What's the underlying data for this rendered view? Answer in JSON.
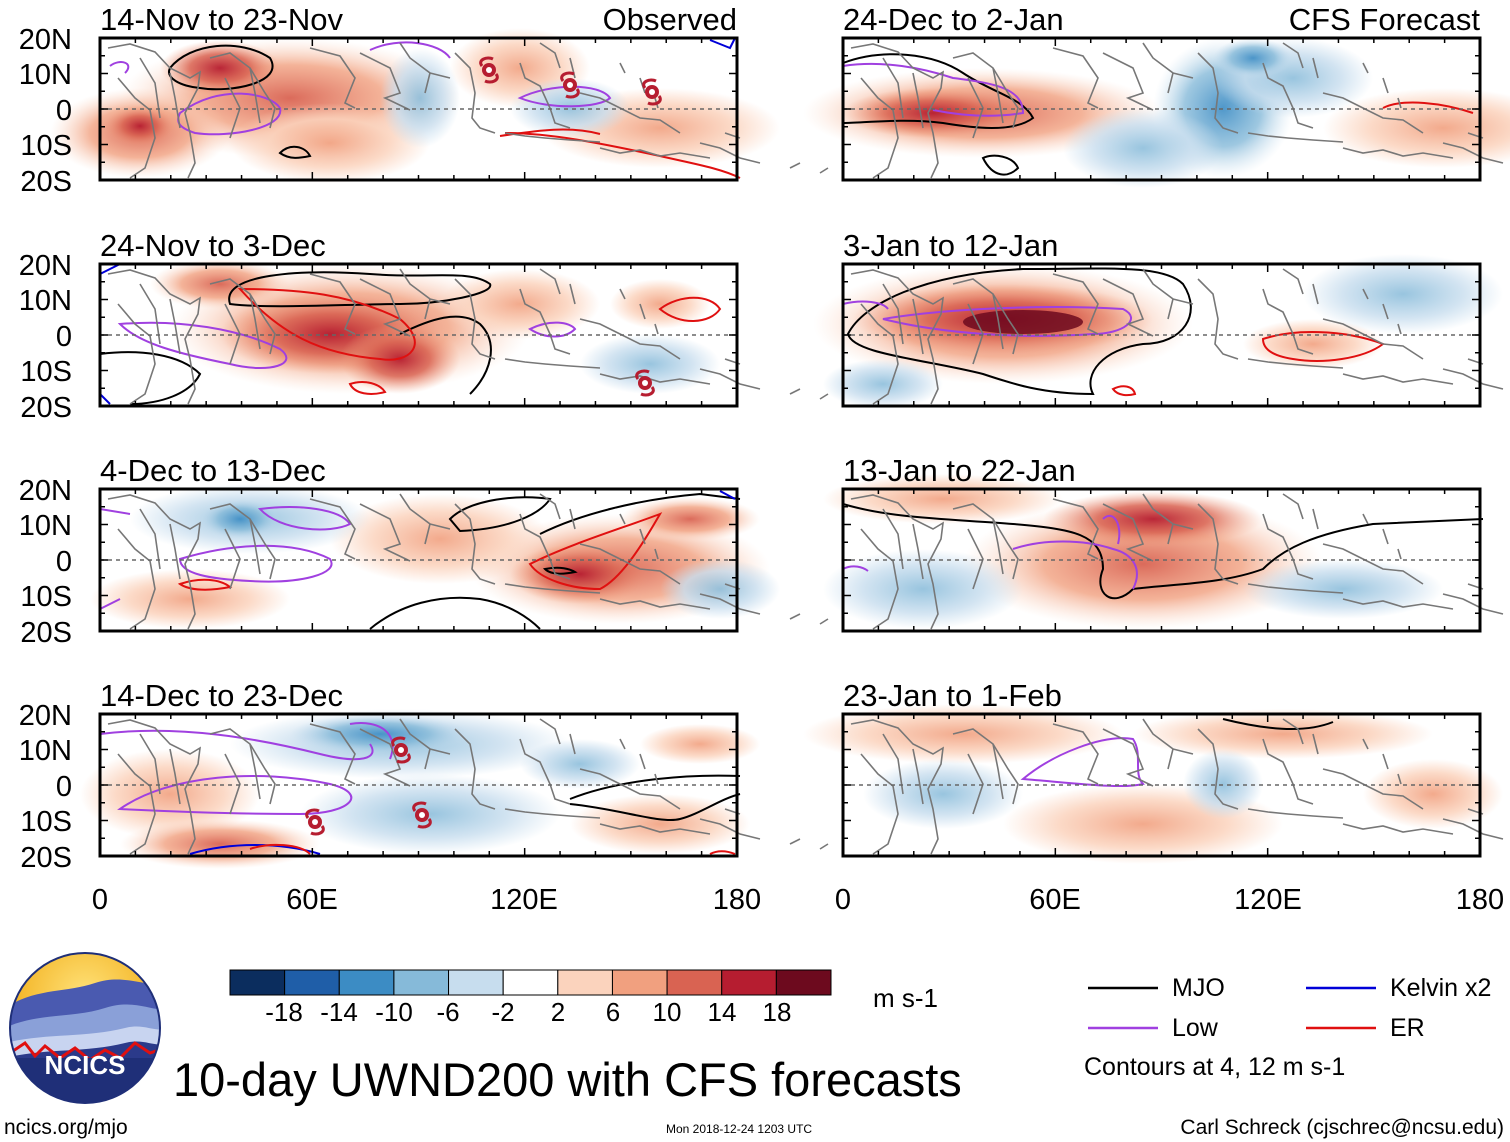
{
  "chart_data": {
    "type": "heatmap",
    "title": "10-day UWND200 with CFS forecasts",
    "variable": "UWND200",
    "units": "m s-1",
    "x_ticks": [
      "0",
      "60E",
      "120E",
      "180"
    ],
    "y_ticks": [
      "20N",
      "10N",
      "0",
      "10S",
      "20S"
    ],
    "lon_range": [
      0,
      180
    ],
    "lat_range": [
      -20,
      20
    ],
    "observed_label": "Observed",
    "forecast_label": "CFS Forecast",
    "observed_panels": [
      {
        "title": "14-Nov to 23-Nov"
      },
      {
        "title": "24-Nov to 3-Dec"
      },
      {
        "title": "4-Dec to 13-Dec"
      },
      {
        "title": "14-Dec to 23-Dec"
      }
    ],
    "forecast_panels": [
      {
        "title": "24-Dec to 2-Jan"
      },
      {
        "title": "3-Jan to 12-Jan"
      },
      {
        "title": "13-Jan to 22-Jan"
      },
      {
        "title": "23-Jan to 1-Feb"
      }
    ],
    "colorbar": {
      "labels": [
        "-18",
        "-14",
        "-10",
        "-6",
        "-2",
        "2",
        "6",
        "10",
        "14",
        "18"
      ],
      "colors": [
        "#0b2d5e",
        "#1f5ea8",
        "#3c8cc4",
        "#86bad9",
        "#c7ddee",
        "#ffffff",
        "#fbd3bd",
        "#f1a07f",
        "#d96352",
        "#b61d30",
        "#6d0a1e"
      ]
    },
    "legend": {
      "mjo": "MJO",
      "low": "Low",
      "kelvin": "Kelvin x2",
      "er": "ER",
      "contours_note": "Contours at 4, 12 m s-1"
    },
    "line_colors": {
      "mjo": "#000000",
      "low": "#a040e0",
      "kelvin": "#0000d8",
      "er": "#e01010"
    },
    "footer": {
      "logo_text": "NCICS",
      "website": "ncics.org/mjo",
      "timestamp": "Mon 2018-12-24 1203 UTC",
      "author": "Carl Schreck (cjschrec@ncsu.edu)"
    }
  }
}
